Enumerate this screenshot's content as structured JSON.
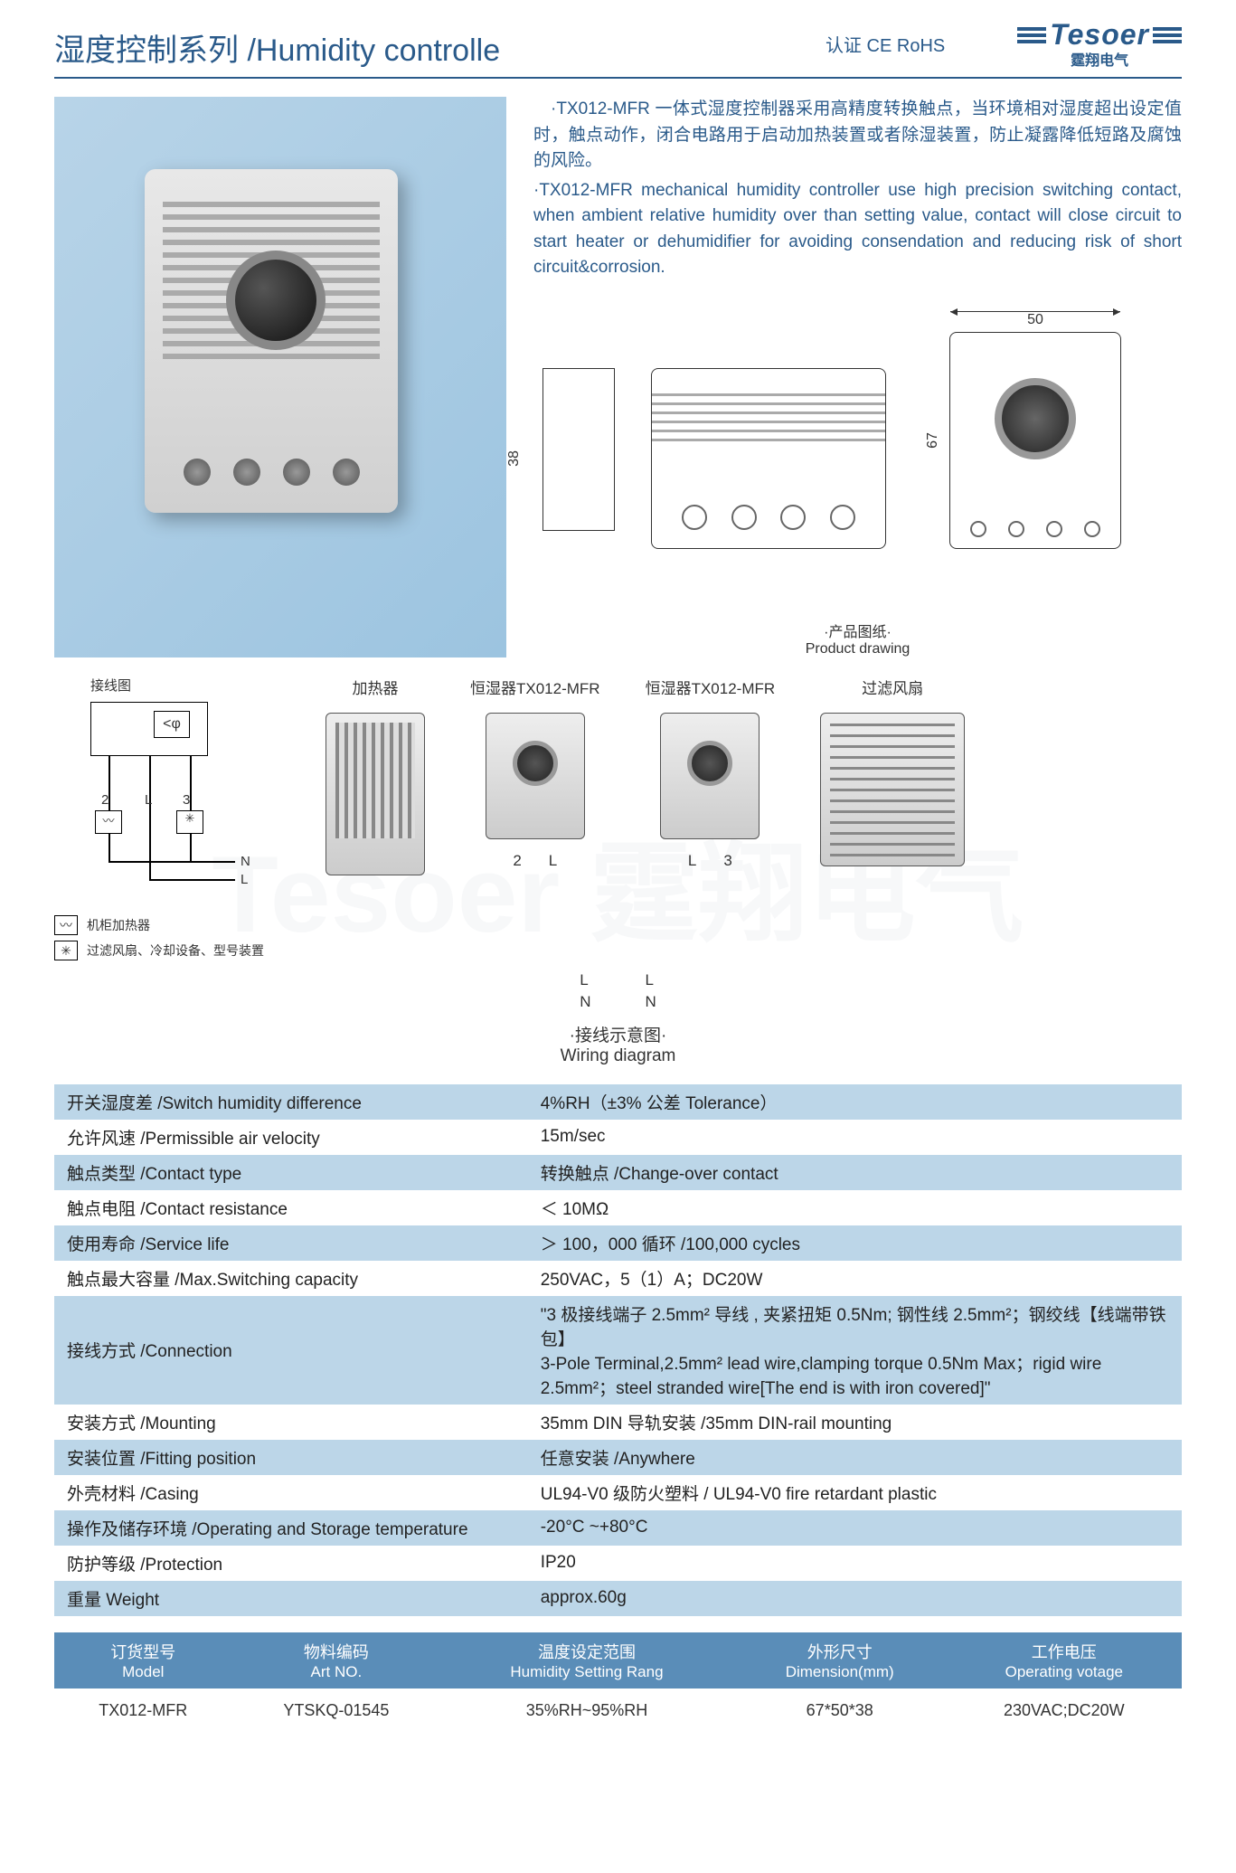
{
  "header": {
    "title": "湿度控制系列 /Humidity controlle",
    "cert": "认证 CE RoHS",
    "logo_text": "Tesoer",
    "logo_sub": "霆翔电气"
  },
  "description": {
    "cn": "·TX012-MFR 一体式湿度控制器采用高精度转换触点，当环境相对湿度超出设定值时，触点动作，闭合电路用于启动加热装置或者除湿装置，防止凝露降低短路及腐蚀的风险。",
    "en": "·TX012-MFR mechanical humidity controller use high precision switching contact, when ambient relative humidity over than setting value, contact will close circuit to start heater or dehumidifier for avoiding consendation and reducing risk of short circuit&corrosion."
  },
  "drawings": {
    "dim_38": "38",
    "dim_67": "67",
    "dim_50": "50",
    "caption_cn": "·产品图纸·",
    "caption_en": "Product drawing"
  },
  "wiring": {
    "schematic_title": "接线图",
    "legend1": "机柜加热器",
    "legend2": "过滤风扇、冷却设备、型号装置",
    "heater": "加热器",
    "hygro1": "恒湿器TX012-MFR",
    "hygro2": "恒湿器TX012-MFR",
    "fan": "过滤风扇",
    "term_2": "2",
    "term_L": "L",
    "term_3": "3",
    "label_L": "L",
    "label_N": "N",
    "caption_cn": "·接线示意图·",
    "caption_en": "Wiring diagram"
  },
  "specs": [
    {
      "label": "开关湿度差 /Switch humidity difference",
      "value": "4%RH（±3% 公差 Tolerance）"
    },
    {
      "label": "允许风速 /Permissible air velocity",
      "value": "15m/sec"
    },
    {
      "label": "触点类型 /Contact type",
      "value": "转换触点 /Change-over contact"
    },
    {
      "label": "触点电阻 /Contact resistance",
      "value": "＜ 10MΩ"
    },
    {
      "label": "使用寿命 /Service life",
      "value": "＞ 100，000 循环 /100,000 cycles"
    },
    {
      "label": "触点最大容量 /Max.Switching capacity",
      "value": "250VAC，5（1）A；DC20W"
    },
    {
      "label": "接线方式 /Connection",
      "value": "\"3 极接线端子 2.5mm² 导线 , 夹紧扭矩 0.5Nm; 钢性线 2.5mm²；钢绞线【线端带铁包】\n3-Pole Terminal,2.5mm² lead wire,clamping torque 0.5Nm Max；rigid wire 2.5mm²；steel stranded wire[The end is with iron covered]\""
    },
    {
      "label": "安装方式 /Mounting",
      "value": "35mm DIN 导轨安装 /35mm DIN-rail mounting"
    },
    {
      "label": "安装位置 /Fitting position",
      "value": "任意安装 /Anywhere"
    },
    {
      "label": "外壳材料 /Casing",
      "value": "UL94-V0 级防火塑料 / UL94-V0 fire retardant plastic"
    },
    {
      "label": "操作及储存环境 /Operating and Storage temperature",
      "value": "-20°C ~+80°C"
    },
    {
      "label": "防护等级 /Protection",
      "value": "IP20"
    },
    {
      "label": "重量 Weight",
      "value": "approx.60g"
    }
  ],
  "model_table": {
    "headers": [
      {
        "zh": "订货型号",
        "en": "Model"
      },
      {
        "zh": "物料编码",
        "en": "Art NO."
      },
      {
        "zh": "温度设定范围",
        "en": "Humidity Setting Rang"
      },
      {
        "zh": "外形尺寸",
        "en": "Dimension(mm)"
      },
      {
        "zh": "工作电压",
        "en": "Operating votage"
      }
    ],
    "row": [
      "TX012-MFR",
      "YTSKQ-01545",
      "35%RH~95%RH",
      "67*50*38",
      "230VAC;DC20W"
    ]
  },
  "colors": {
    "primary": "#2a5a8a",
    "row_odd": "#bcd6e8",
    "header_bg": "#5a8db8"
  }
}
